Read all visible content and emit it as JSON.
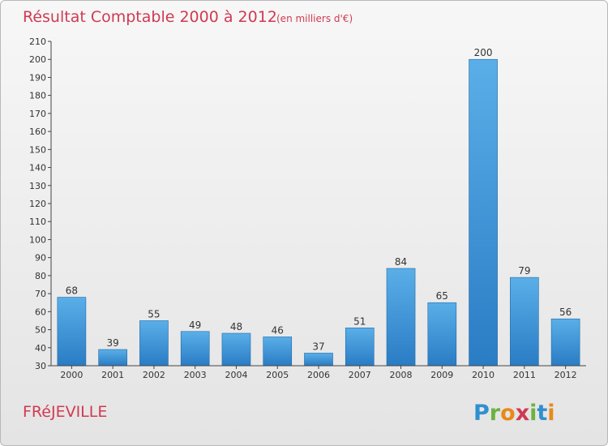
{
  "chart_data": {
    "type": "bar",
    "title": "Résultat Comptable 2000 à 2012",
    "subtitle": "(en milliers d'€)",
    "categories": [
      "2000",
      "2001",
      "2002",
      "2003",
      "2004",
      "2005",
      "2006",
      "2007",
      "2008",
      "2009",
      "2010",
      "2011",
      "2012"
    ],
    "values": [
      68,
      39,
      55,
      49,
      48,
      46,
      37,
      51,
      84,
      65,
      200,
      79,
      56
    ],
    "ylim": [
      30,
      210
    ],
    "ytick_step": 10,
    "xlabel": "",
    "ylabel": "",
    "grid": false,
    "bar_color_top": "#5aafe8",
    "bar_color_bottom": "#2a7cc4"
  },
  "footer": {
    "commune": "FRéJEVILLE",
    "logo_letters": [
      "P",
      "r",
      "o",
      "x",
      "i",
      "t",
      "i"
    ],
    "logo_colors": [
      "#2f8fd0",
      "#6cb33f",
      "#e8891a",
      "#d03a52",
      "#6cb33f",
      "#2f8fd0",
      "#e8891a"
    ]
  }
}
